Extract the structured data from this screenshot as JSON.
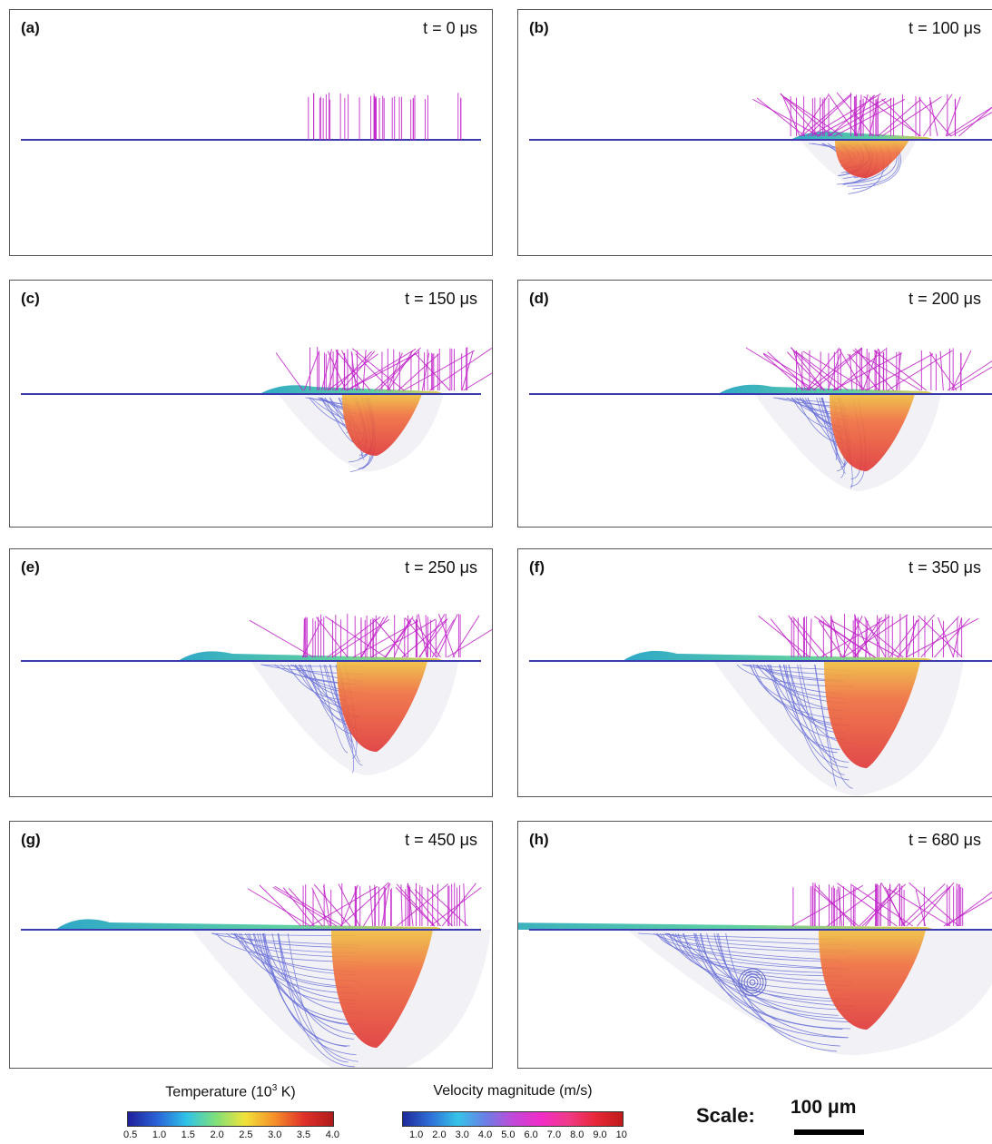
{
  "panels": [
    {
      "label": "(a)",
      "time": "t = 0 μs",
      "stage": 0
    },
    {
      "label": "(b)",
      "time": "t = 100 μs",
      "stage": 1
    },
    {
      "label": "(c)",
      "time": "t = 150 μs",
      "stage": 2
    },
    {
      "label": "(d)",
      "time": "t = 200 μs",
      "stage": 3
    },
    {
      "label": "(e)",
      "time": "t = 250 μs",
      "stage": 4
    },
    {
      "label": "(f)",
      "time": "t = 350 μs",
      "stage": 5
    },
    {
      "label": "(g)",
      "time": "t = 450 μs",
      "stage": 6
    },
    {
      "label": "(h)",
      "time": "t = 680 μs",
      "stage": 7
    }
  ],
  "legend": {
    "temperature": {
      "title_main": "Temperature (10",
      "title_sup": "3",
      "title_end": " K)",
      "ticks": [
        "0.5",
        "1.0",
        "1.5",
        "2.0",
        "2.5",
        "3.0",
        "3.5",
        "4.0"
      ],
      "colors": [
        "#1f1f9a",
        "#2a63d8",
        "#2fc3e8",
        "#7fe07a",
        "#f2e23a",
        "#f5902a",
        "#e0302a",
        "#b01a1a"
      ]
    },
    "velocity": {
      "title": "Velocity magnitude (m/s)",
      "ticks": [
        "1.0",
        "2.0",
        "3.0",
        "4.0",
        "5.0",
        "6.0",
        "7.0",
        "8.0",
        "9.0",
        "10"
      ],
      "colors": [
        "#1e2a9a",
        "#2f6fd8",
        "#35c4e8",
        "#6a7fe6",
        "#c04ad8",
        "#f02cc8",
        "#f03a8a",
        "#e8283a",
        "#c01a1a"
      ]
    },
    "scale": {
      "label": "Scale:",
      "value": "100 μm"
    }
  }
}
